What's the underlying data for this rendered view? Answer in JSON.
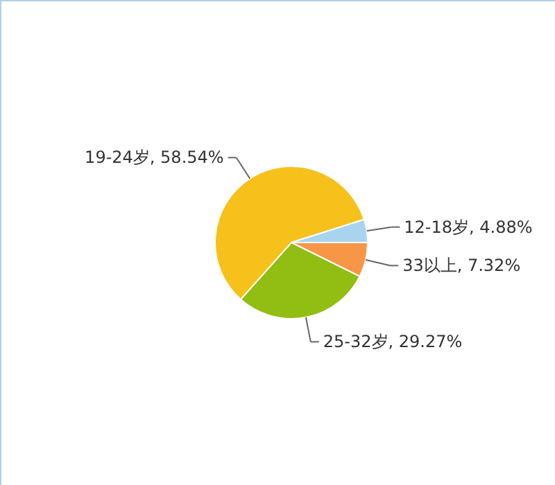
{
  "chart_data": {
    "type": "pie",
    "categories": [
      "33以上",
      "25-32岁",
      "19-24岁",
      "12-18岁"
    ],
    "values": [
      7.32,
      29.27,
      58.54,
      4.88
    ],
    "colors": [
      "#f79646",
      "#92bd12",
      "#f7c11c",
      "#a9d4f0"
    ],
    "value_labels": [
      "7.32%",
      "29.27%",
      "58.54%",
      "4.88%"
    ]
  }
}
